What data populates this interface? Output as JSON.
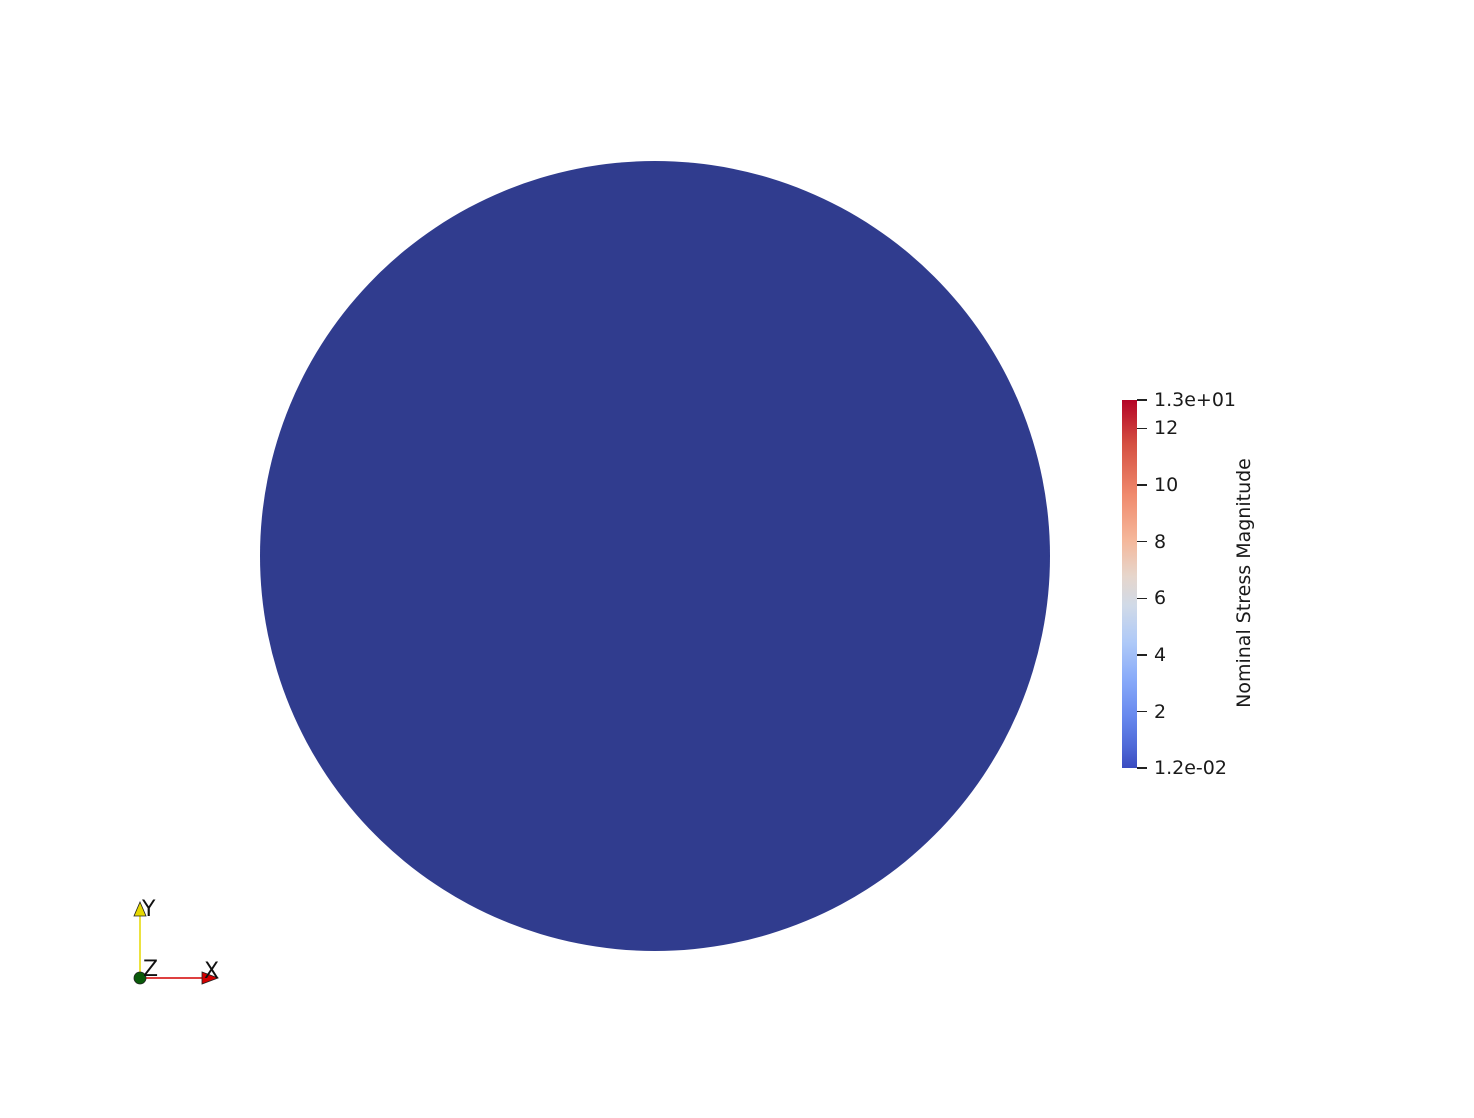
{
  "scene": {
    "mesh_color": "#303c8e",
    "background": "#ffffff"
  },
  "colorbar": {
    "title": "Nominal Stress Magnitude",
    "colormap": "coolwarm",
    "range": [
      0.012,
      13
    ],
    "max_label": "1.3e+01",
    "min_label": "1.2e-02",
    "ticks": [
      {
        "value": 13,
        "label": "1.3e+01"
      },
      {
        "value": 12,
        "label": "12"
      },
      {
        "value": 10,
        "label": "10"
      },
      {
        "value": 8,
        "label": "8"
      },
      {
        "value": 6,
        "label": "6"
      },
      {
        "value": 4,
        "label": "4"
      },
      {
        "value": 2,
        "label": "2"
      },
      {
        "value": 0.012,
        "label": "1.2e-02"
      }
    ]
  },
  "orientation_axes": {
    "x_label": "X",
    "y_label": "Y",
    "z_label": "Z",
    "x_color": "#d40000",
    "y_color": "#e6d800",
    "z_color": "#0a5a0a"
  }
}
